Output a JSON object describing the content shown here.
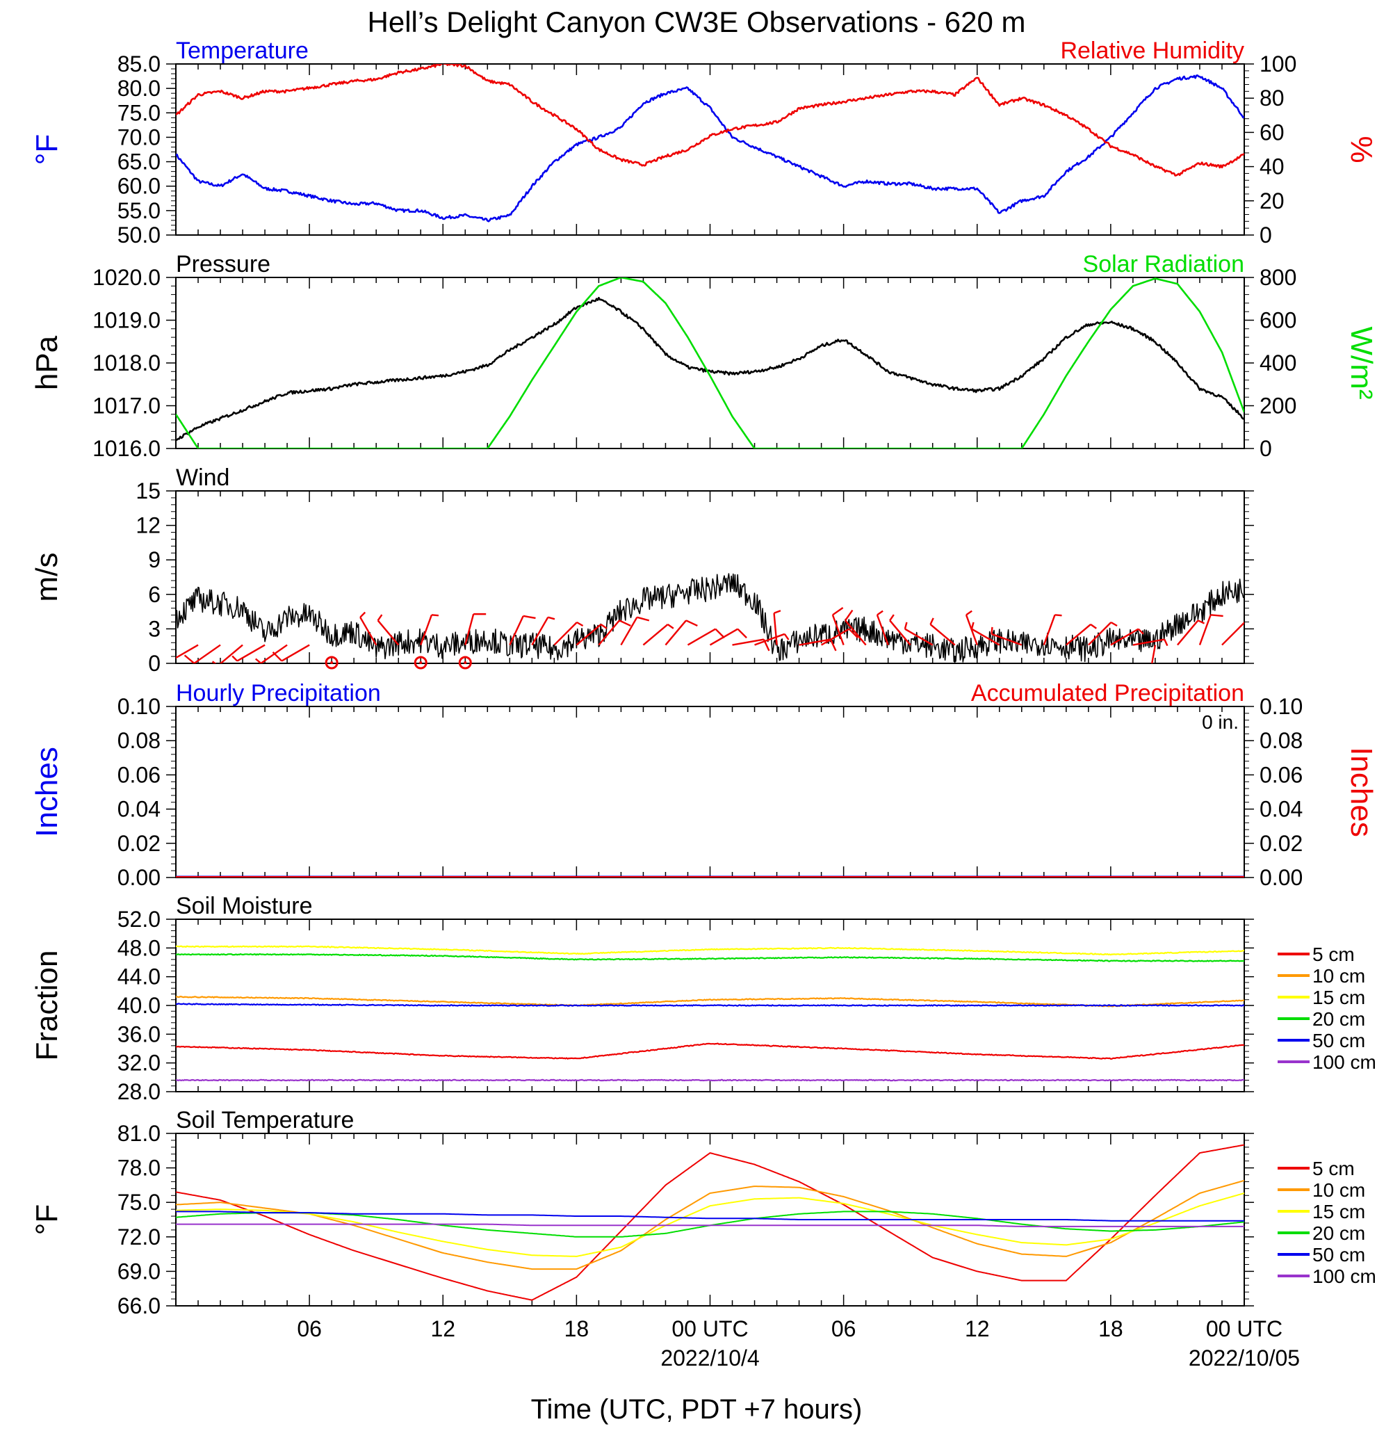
{
  "page": {
    "title": "Hell’s Delight Canyon CW3E Observations - 620 m",
    "xlabel": "Time (UTC, PDT +7 hours)",
    "x_ticks": [
      "06",
      "12",
      "18",
      "00 UTC",
      "06",
      "12",
      "18",
      "00 UTC"
    ],
    "x_dates": [
      "2022/10/4",
      "2022/10/05"
    ]
  },
  "colors": {
    "blue": "#0000ee",
    "red": "#ee0000",
    "green": "#00dd00",
    "orange": "#ff9900",
    "yellow": "#ffff00",
    "purple": "#9933cc",
    "black": "#000000"
  },
  "chart_data": [
    {
      "id": "temp_rh",
      "type": "line",
      "title_left": "Temperature",
      "title_right": "Relative Humidity",
      "ylabel_left": "°F",
      "ylabel_right": "%",
      "ylim_left": [
        50,
        85
      ],
      "yticks_left": [
        "50.0",
        "55.0",
        "60.0",
        "65.0",
        "70.0",
        "75.0",
        "80.0",
        "85.0"
      ],
      "ylim_right": [
        0,
        100
      ],
      "yticks_right": [
        "0",
        "20",
        "40",
        "60",
        "80",
        "100"
      ],
      "x_hours": [
        0,
        1,
        2,
        3,
        4,
        5,
        6,
        7,
        8,
        9,
        10,
        11,
        12,
        13,
        14,
        15,
        16,
        17,
        18,
        19,
        20,
        21,
        22,
        23,
        24,
        25,
        26,
        27,
        28,
        29,
        30,
        31,
        32,
        33,
        34,
        35,
        36,
        37,
        38,
        39,
        40,
        41,
        42,
        43,
        44,
        45,
        46,
        47,
        48
      ],
      "series": [
        {
          "name": "Temperature",
          "axis": "left",
          "color": "blue",
          "values": [
            66.5,
            61,
            60,
            62.5,
            59.5,
            59,
            58,
            57,
            56.3,
            56.5,
            55,
            55,
            53.5,
            54,
            53,
            54,
            60,
            65,
            68.5,
            70,
            72,
            77,
            79,
            80,
            76,
            70,
            68,
            66,
            64,
            62,
            60,
            61,
            60.5,
            60.5,
            59.5,
            59.5,
            59.5,
            54.5,
            57,
            58,
            63,
            66,
            70,
            75,
            80,
            82,
            82.5,
            80,
            74
          ]
        },
        {
          "name": "Relative Humidity",
          "axis": "right",
          "color": "red",
          "values": [
            70,
            82,
            84,
            80,
            84,
            84,
            86,
            88,
            90,
            91,
            95,
            97,
            100,
            99,
            90,
            88,
            78,
            70,
            62,
            50,
            44,
            41,
            46,
            50,
            58,
            62,
            64,
            66,
            74,
            76,
            78,
            80,
            82,
            84,
            84,
            82,
            92,
            76,
            80,
            76,
            70,
            62,
            52,
            47,
            40,
            35,
            42,
            40,
            47
          ]
        }
      ]
    },
    {
      "id": "pressure_solar",
      "type": "line",
      "title_left": "Pressure",
      "title_right": "Solar Radiation",
      "ylabel_left": "hPa",
      "ylabel_right": "W/m²",
      "ylim_left": [
        1016,
        1020
      ],
      "yticks_left": [
        "1016.0",
        "1017.0",
        "1018.0",
        "1019.0",
        "1020.0"
      ],
      "ylim_right": [
        0,
        800
      ],
      "yticks_right": [
        "0",
        "200",
        "400",
        "600",
        "800"
      ],
      "x_hours": [
        0,
        1,
        2,
        3,
        4,
        5,
        6,
        7,
        8,
        9,
        10,
        11,
        12,
        13,
        14,
        15,
        16,
        17,
        18,
        19,
        20,
        21,
        22,
        23,
        24,
        25,
        26,
        27,
        28,
        29,
        30,
        31,
        32,
        33,
        34,
        35,
        36,
        37,
        38,
        39,
        40,
        41,
        42,
        43,
        44,
        45,
        46,
        47,
        48
      ],
      "series": [
        {
          "name": "Pressure",
          "axis": "left",
          "color": "black",
          "values": [
            1016.2,
            1016.5,
            1016.7,
            1016.9,
            1017.1,
            1017.3,
            1017.35,
            1017.4,
            1017.5,
            1017.55,
            1017.6,
            1017.65,
            1017.7,
            1017.8,
            1017.95,
            1018.3,
            1018.6,
            1018.9,
            1019.3,
            1019.5,
            1019.2,
            1018.8,
            1018.2,
            1017.9,
            1017.8,
            1017.75,
            1017.8,
            1017.9,
            1018.1,
            1018.4,
            1018.55,
            1018.2,
            1017.8,
            1017.65,
            1017.5,
            1017.4,
            1017.35,
            1017.4,
            1017.7,
            1018.1,
            1018.6,
            1018.9,
            1018.95,
            1018.8,
            1018.5,
            1018.0,
            1017.4,
            1017.2,
            1016.7
          ]
        },
        {
          "name": "Solar Radiation",
          "axis": "right",
          "color": "green",
          "values": [
            160,
            0,
            0,
            0,
            0,
            0,
            0,
            0,
            0,
            0,
            0,
            0,
            0,
            0,
            0,
            150,
            320,
            480,
            640,
            760,
            800,
            780,
            680,
            520,
            340,
            150,
            0,
            0,
            0,
            0,
            0,
            0,
            0,
            0,
            0,
            0,
            0,
            0,
            0,
            160,
            340,
            500,
            650,
            760,
            795,
            770,
            640,
            450,
            170
          ]
        }
      ]
    },
    {
      "id": "wind",
      "type": "line",
      "title_left": "Wind",
      "ylabel_left": "m/s",
      "ylim_left": [
        0,
        15
      ],
      "yticks_left": [
        "0",
        "3",
        "6",
        "9",
        "12",
        "15"
      ],
      "x_hours": [
        0,
        1,
        2,
        3,
        4,
        5,
        6,
        7,
        8,
        9,
        10,
        11,
        12,
        13,
        14,
        15,
        16,
        17,
        18,
        19,
        20,
        21,
        22,
        23,
        24,
        25,
        26,
        27,
        28,
        29,
        30,
        31,
        32,
        33,
        34,
        35,
        36,
        37,
        38,
        39,
        40,
        41,
        42,
        43,
        44,
        45,
        46,
        47,
        48
      ],
      "series": [
        {
          "name": "Wind speed",
          "color": "black",
          "values": [
            4,
            5.6,
            5.2,
            4.8,
            2.5,
            4,
            4.2,
            2.5,
            2.8,
            1.2,
            1.8,
            2,
            1.5,
            1.8,
            2.2,
            1.5,
            1.6,
            1.2,
            2,
            2.5,
            4.5,
            5.5,
            5.8,
            6.2,
            6.5,
            7,
            5.5,
            1,
            2,
            2.5,
            2.8,
            3,
            2.2,
            1.8,
            1.5,
            1,
            1.5,
            2,
            1.6,
            1.8,
            1.5,
            1.2,
            2,
            1.8,
            2,
            3.5,
            4.5,
            6,
            6.5
          ]
        }
      ],
      "barbs": {
        "color": "red",
        "hours": [
          1,
          2,
          3,
          4,
          5,
          6,
          8,
          9,
          10,
          11,
          12,
          13,
          14,
          15,
          16,
          17,
          18,
          19,
          20,
          21,
          22,
          23,
          24,
          25,
          26,
          27,
          28,
          29,
          30,
          31,
          32,
          33,
          34,
          35,
          36,
          37,
          38,
          39,
          40,
          41,
          42,
          43,
          44,
          45,
          46,
          47
        ],
        "speeds": [
          2,
          2.5,
          2.2,
          2.4,
          2,
          2.5,
          0,
          2,
          1.5,
          2,
          0,
          2.5,
          0,
          2.5,
          2,
          1.5,
          2,
          3,
          3,
          2,
          2.5,
          3,
          3,
          2.5,
          2,
          2,
          2.5,
          2.5,
          2.5,
          2.5,
          2,
          2,
          2,
          2,
          2,
          2,
          2,
          2,
          2,
          1.5,
          2,
          2,
          2,
          2,
          2.5,
          2.5
        ],
        "dirs": [
          240,
          235,
          230,
          240,
          235,
          240,
          0,
          330,
          320,
          20,
          0,
          15,
          0,
          25,
          30,
          45,
          50,
          40,
          30,
          50,
          40,
          60,
          60,
          80,
          70,
          355,
          80,
          60,
          340,
          320,
          340,
          320,
          300,
          310,
          340,
          300,
          290,
          20,
          50,
          45,
          60,
          80,
          190,
          40,
          20,
          45
        ],
        "calm_hours": [
          7,
          11,
          13
        ]
      }
    },
    {
      "id": "precip",
      "type": "line",
      "title_left": "Hourly Precipitation",
      "title_right": "Accumulated Precipitation",
      "annotation": "0 in.",
      "ylabel_left": "Inches",
      "ylabel_right": "Inches",
      "ylim_left": [
        0,
        0.1
      ],
      "yticks_left": [
        "0.00",
        "0.02",
        "0.04",
        "0.06",
        "0.08",
        "0.10"
      ],
      "yticks_right": [
        "0.00",
        "0.02",
        "0.04",
        "0.06",
        "0.08",
        "0.10"
      ],
      "series": [
        {
          "name": "Hourly Precipitation",
          "color": "blue",
          "values": [
            0,
            0
          ]
        },
        {
          "name": "Accumulated Precipitation",
          "color": "red",
          "values": [
            0,
            0
          ]
        }
      ]
    },
    {
      "id": "soil_moisture",
      "type": "line",
      "title_left": "Soil Moisture",
      "ylabel_left": "Fraction",
      "ylim_left": [
        28,
        52
      ],
      "yticks_left": [
        "28.0",
        "32.0",
        "36.0",
        "40.0",
        "44.0",
        "48.0",
        "52.0"
      ],
      "x_hours": [
        0,
        6,
        12,
        18,
        24,
        30,
        36,
        42,
        48
      ],
      "series": [
        {
          "name": "5 cm",
          "color": "red",
          "values": [
            34.3,
            33.8,
            33.0,
            32.6,
            34.7,
            34.0,
            33.2,
            32.6,
            34.5
          ]
        },
        {
          "name": "10 cm",
          "color": "orange",
          "values": [
            41.2,
            41.0,
            40.5,
            40.0,
            40.8,
            41.0,
            40.5,
            39.9,
            40.7
          ]
        },
        {
          "name": "15 cm",
          "color": "yellow",
          "values": [
            48.2,
            48.2,
            47.8,
            47.2,
            47.8,
            48.0,
            47.6,
            47.1,
            47.6
          ]
        },
        {
          "name": "20 cm",
          "color": "green",
          "values": [
            47.1,
            47.1,
            46.9,
            46.4,
            46.5,
            46.7,
            46.5,
            46.2,
            46.2
          ]
        },
        {
          "name": "50 cm",
          "color": "blue",
          "values": [
            40.2,
            40.1,
            40.0,
            40.0,
            40.0,
            40.0,
            40.0,
            40.0,
            40.0
          ]
        },
        {
          "name": "100 cm",
          "color": "purple",
          "values": [
            29.6,
            29.6,
            29.6,
            29.6,
            29.6,
            29.6,
            29.6,
            29.6,
            29.6
          ]
        }
      ]
    },
    {
      "id": "soil_temp",
      "type": "line",
      "title_left": "Soil Temperature",
      "ylabel_left": "°F",
      "ylim_left": [
        66,
        81
      ],
      "yticks_left": [
        "66.0",
        "69.0",
        "72.0",
        "75.0",
        "78.0",
        "81.0"
      ],
      "x_hours": [
        0,
        2,
        4,
        6,
        8,
        10,
        12,
        14,
        16,
        18,
        20,
        22,
        24,
        26,
        28,
        30,
        32,
        34,
        36,
        38,
        40,
        42,
        44,
        46,
        48
      ],
      "series": [
        {
          "name": "5 cm",
          "color": "red",
          "values": [
            75.9,
            75.2,
            73.8,
            72.2,
            70.8,
            69.6,
            68.4,
            67.3,
            66.5,
            68.5,
            72.5,
            76.5,
            79.3,
            78.3,
            76.8,
            74.8,
            72.5,
            70.2,
            69.0,
            68.2,
            68.2,
            71.8,
            75.6,
            79.3,
            80.0
          ]
        },
        {
          "name": "10 cm",
          "color": "orange",
          "values": [
            74.8,
            75.0,
            74.5,
            74.0,
            73.0,
            71.8,
            70.6,
            69.8,
            69.2,
            69.2,
            70.8,
            73.5,
            75.8,
            76.4,
            76.3,
            75.5,
            74.3,
            72.8,
            71.4,
            70.5,
            70.3,
            71.5,
            73.6,
            75.8,
            76.9
          ]
        },
        {
          "name": "15 cm",
          "color": "yellow",
          "values": [
            74.3,
            74.4,
            74.3,
            74.0,
            73.3,
            72.4,
            71.6,
            70.9,
            70.4,
            70.3,
            71.1,
            73.0,
            74.7,
            75.3,
            75.4,
            74.9,
            74.0,
            73.0,
            72.2,
            71.5,
            71.3,
            71.8,
            73.2,
            74.7,
            75.8
          ]
        },
        {
          "name": "20 cm",
          "color": "green",
          "values": [
            73.7,
            74.0,
            74.1,
            74.1,
            73.9,
            73.5,
            73.0,
            72.6,
            72.3,
            72.0,
            72.0,
            72.3,
            73.0,
            73.6,
            74.0,
            74.2,
            74.2,
            74.0,
            73.6,
            73.1,
            72.7,
            72.5,
            72.6,
            72.9,
            73.3
          ]
        },
        {
          "name": "50 cm",
          "color": "blue",
          "values": [
            74.2,
            74.2,
            74.1,
            74.1,
            74.0,
            74.0,
            74.0,
            73.9,
            73.9,
            73.8,
            73.8,
            73.7,
            73.6,
            73.6,
            73.5,
            73.5,
            73.5,
            73.5,
            73.5,
            73.5,
            73.5,
            73.4,
            73.4,
            73.4,
            73.4
          ]
        },
        {
          "name": "100 cm",
          "color": "purple",
          "values": [
            73.1,
            73.1,
            73.1,
            73.1,
            73.1,
            73.1,
            73.1,
            73.1,
            73.0,
            73.0,
            73.0,
            73.0,
            73.0,
            73.0,
            73.0,
            73.0,
            73.0,
            73.0,
            73.0,
            72.9,
            72.9,
            72.9,
            72.9,
            72.9,
            72.9
          ]
        }
      ]
    }
  ]
}
